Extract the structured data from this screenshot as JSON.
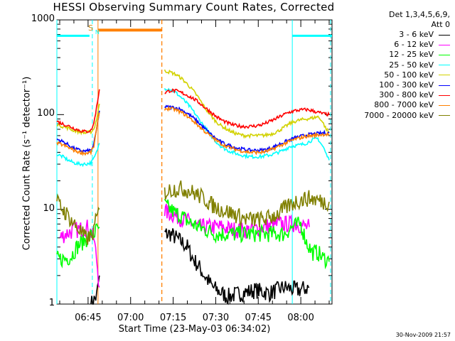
{
  "chart_data": {
    "type": "line",
    "title": "HESSI Observing Summary Count Rates, Corrected",
    "xlabel": "Start Time (23-May-03 06:34:02)",
    "ylabel": "Corrected Count Rate (s⁻¹ detector⁻¹)",
    "yscale": "log",
    "ylim": [
      1,
      1000
    ],
    "xlim_minutes": [
      0,
      97
    ],
    "x_ticks": [
      {
        "label": "06:45",
        "minute": 11
      },
      {
        "label": "07:00",
        "minute": 26
      },
      {
        "label": "07:15",
        "minute": 41
      },
      {
        "label": "07:30",
        "minute": 56
      },
      {
        "label": "07:45",
        "minute": 71
      },
      {
        "label": "08:00",
        "minute": 86
      }
    ],
    "y_ticks": [
      {
        "label": "1",
        "value": 1
      },
      {
        "label": "10",
        "value": 10
      },
      {
        "label": "100",
        "value": 100
      },
      {
        "label": "1000",
        "value": 1000
      }
    ],
    "legend_header": [
      "Det 1,3,4,5,6,9,",
      "Att 0"
    ],
    "legend_position": "outside-right",
    "series": [
      {
        "name": "3 - 6 keV",
        "color": "#000000",
        "segments": [
          {
            "x": [
              12,
              14,
              15
            ],
            "y": [
              1,
              1.2,
              2
            ]
          },
          {
            "x": [
              38,
              40,
              42,
              44,
              46,
              48,
              50,
              52,
              55,
              60,
              65,
              70,
              75,
              80,
              85,
              89
            ],
            "y": [
              5.5,
              5.5,
              5,
              4.5,
              4,
              3,
              2.5,
              2,
              1.5,
              1.2,
              1.3,
              1.4,
              1.3,
              1.5,
              1.4,
              1.5
            ]
          }
        ]
      },
      {
        "name": "6 - 12 keV",
        "color": "#ff00ff",
        "segments": [
          {
            "x": [
              1,
              3,
              6,
              9,
              11,
              13,
              14,
              15
            ],
            "y": [
              5,
              5.5,
              6,
              6.2,
              6.5,
              5,
              3,
              1.5
            ]
          },
          {
            "x": [
              38,
              40,
              42,
              44,
              46,
              48,
              50,
              52,
              55,
              58,
              61,
              64,
              67,
              70,
              73,
              76,
              79,
              82,
              84,
              86,
              88,
              89
            ],
            "y": [
              9.5,
              9,
              8.5,
              8,
              7.5,
              7,
              6.5,
              6.5,
              6.5,
              6.5,
              6.2,
              6,
              6,
              6.2,
              6.5,
              6.8,
              7,
              7,
              7,
              6.8,
              6.5,
              6.5
            ]
          }
        ]
      },
      {
        "name": "12 - 25 keV",
        "color": "#00ff00",
        "segments": [
          {
            "x": [
              0,
              3,
              5,
              7,
              9,
              11,
              13,
              14,
              15
            ],
            "y": [
              3,
              3,
              3.2,
              4,
              4.5,
              5,
              5.5,
              6,
              6.5
            ]
          },
          {
            "x": [
              38,
              40,
              42,
              44,
              46,
              48,
              50,
              53,
              56,
              59,
              62,
              65,
              68,
              71,
              74,
              77,
              80,
              83,
              86,
              88,
              90,
              92,
              94,
              95,
              96
            ],
            "y": [
              11,
              10,
              9,
              8.5,
              7.5,
              7,
              6.5,
              6,
              5.5,
              5.5,
              5.5,
              5.5,
              5.5,
              5.5,
              5.5,
              5.5,
              5.5,
              6.5,
              7,
              4.5,
              3.5,
              3.5,
              3,
              3,
              2.8
            ]
          }
        ]
      },
      {
        "name": "25 - 50 keV",
        "color": "#00ffff",
        "segments": [
          {
            "x": [
              0,
              2,
              4,
              6,
              8,
              10,
              12,
              13,
              14,
              15
            ],
            "y": [
              38,
              36,
              33,
              31,
              30,
              30,
              31,
              34,
              40,
              50
            ]
          },
          {
            "x": [
              38,
              40,
              42,
              44,
              46,
              48,
              50,
              52,
              54,
              56,
              58,
              60,
              62,
              64,
              66,
              68,
              70,
              72,
              74,
              76,
              78,
              80,
              82,
              84,
              86,
              88,
              90,
              92,
              93,
              94,
              95,
              96
            ],
            "y": [
              190,
              185,
              170,
              150,
              130,
              110,
              90,
              75,
              62,
              52,
              46,
              42,
              40,
              38,
              37,
              36,
              36,
              36,
              37,
              38,
              40,
              42,
              46,
              47,
              48,
              50,
              54,
              56,
              50,
              45,
              38,
              33
            ]
          }
        ]
      },
      {
        "name": "50 - 100 keV",
        "color": "#d2d200",
        "segments": [
          {
            "x": [
              0,
              2,
              4,
              6,
              8,
              10,
              12,
              13,
              14,
              15
            ],
            "y": [
              80,
              75,
              72,
              68,
              66,
              64,
              66,
              70,
              90,
              130
            ]
          },
          {
            "x": [
              38,
              40,
              42,
              44,
              46,
              48,
              50,
              52,
              54,
              56,
              58,
              60,
              62,
              64,
              66,
              68,
              70,
              72,
              74,
              76,
              78,
              80,
              82,
              84,
              86,
              88,
              90,
              92,
              93,
              94,
              95,
              96
            ],
            "y": [
              290,
              280,
              265,
              240,
              210,
              180,
              150,
              120,
              100,
              85,
              76,
              70,
              65,
              62,
              60,
              60,
              60,
              60,
              61,
              63,
              67,
              73,
              80,
              85,
              88,
              90,
              92,
              95,
              90,
              80,
              70,
              65
            ]
          }
        ]
      },
      {
        "name": "100 - 300 keV",
        "color": "#0000ff",
        "segments": [
          {
            "x": [
              0,
              2,
              4,
              6,
              8,
              10,
              12,
              13,
              14,
              15
            ],
            "y": [
              55,
              52,
              48,
              44,
              42,
              41,
              42,
              48,
              70,
              110
            ]
          },
          {
            "x": [
              38,
              40,
              42,
              44,
              46,
              48,
              50,
              52,
              54,
              56,
              58,
              60,
              62,
              64,
              66,
              68,
              70,
              72,
              74,
              76,
              78,
              80,
              82,
              84,
              86,
              88,
              90,
              92,
              94,
              96
            ],
            "y": [
              120,
              120,
              118,
              112,
              103,
              93,
              82,
              72,
              63,
              56,
              51,
              48,
              46,
              44,
              43,
              42,
              42,
              42,
              43,
              45,
              48,
              51,
              54,
              57,
              59,
              61,
              62,
              63,
              64,
              64
            ]
          }
        ]
      },
      {
        "name": "300 - 800 keV",
        "color": "#ff0000",
        "segments": [
          {
            "x": [
              0,
              2,
              4,
              6,
              8,
              10,
              12,
              13,
              14,
              15
            ],
            "y": [
              85,
              80,
              76,
              72,
              68,
              66,
              68,
              80,
              120,
              185
            ]
          },
          {
            "x": [
              38,
              40,
              42,
              44,
              46,
              48,
              50,
              52,
              54,
              56,
              58,
              60,
              62,
              64,
              66,
              68,
              70,
              72,
              74,
              76,
              78,
              80,
              82,
              84,
              86,
              88,
              90,
              92,
              94,
              96
            ],
            "y": [
              170,
              180,
              178,
              170,
              160,
              148,
              135,
              120,
              108,
              96,
              88,
              82,
              78,
              76,
              75,
              75,
              76,
              78,
              82,
              87,
              93,
              100,
              106,
              110,
              112,
              113,
              110,
              106,
              102,
              100
            ]
          }
        ]
      },
      {
        "name": "800 - 7000 keV",
        "color": "#ff8000",
        "segments": [
          {
            "x": [
              0,
              2,
              4,
              6,
              8,
              10,
              12,
              13,
              14,
              15
            ],
            "y": [
              50,
              48,
              45,
              42,
              40,
              39,
              40,
              46,
              70,
              105
            ]
          },
          {
            "x": [
              38,
              40,
              42,
              44,
              46,
              48,
              50,
              52,
              54,
              56,
              58,
              60,
              62,
              64,
              66,
              68,
              70,
              72,
              74,
              76,
              78,
              80,
              82,
              84,
              86,
              88,
              90,
              92,
              94,
              96
            ],
            "y": [
              115,
              116,
              112,
              105,
              96,
              86,
              76,
              67,
              60,
              54,
              49,
              46,
              44,
              42,
              41,
              40,
              40,
              40,
              41,
              43,
              46,
              49,
              52,
              55,
              57,
              59,
              60,
              61,
              62,
              62
            ]
          }
        ]
      },
      {
        "name": "7000 - 20000 keV",
        "color": "#808000",
        "segments": [
          {
            "x": [
              0,
              2,
              4,
              6,
              8,
              10,
              12,
              13,
              14,
              15
            ],
            "y": [
              12,
              10,
              8.5,
              7,
              6,
              5,
              5,
              6,
              8,
              10
            ]
          },
          {
            "x": [
              38,
              40,
              42,
              44,
              46,
              48,
              50,
              52,
              54,
              56,
              58,
              60,
              62,
              64,
              66,
              68,
              70,
              72,
              74,
              76,
              78,
              80,
              82,
              84,
              86,
              88,
              90,
              92,
              94,
              96
            ],
            "y": [
              15,
              16,
              16.5,
              16.5,
              16,
              15,
              14,
              13,
              11.5,
              10.5,
              10,
              9.5,
              9,
              8.5,
              8,
              7.8,
              7.8,
              7.8,
              8,
              8.5,
              9,
              10,
              11,
              12,
              12.5,
              13,
              13,
              12.5,
              12,
              12
            ]
          }
        ]
      }
    ],
    "markers": {
      "saa_bars": {
        "color": "#00ffff",
        "y": 680,
        "intervals": [
          [
            0,
            11.5
          ],
          [
            83,
            97
          ]
        ]
      },
      "night_bar": {
        "color": "#ff8000",
        "y": 780,
        "interval": [
          14.5,
          37
        ]
      },
      "saa_lines": {
        "color": "#00ffff",
        "solid": [
          0,
          83
        ],
        "dashed": [
          12.5,
          96.5
        ]
      },
      "night_lines": {
        "color": "#ff8000",
        "solid": [
          14.5
        ],
        "dashed": [
          37
        ]
      },
      "flag_letter": "S",
      "flag_color": "#cc8a10",
      "flag_n": "N"
    }
  },
  "timestamp": "30-Nov-2009 21:57"
}
